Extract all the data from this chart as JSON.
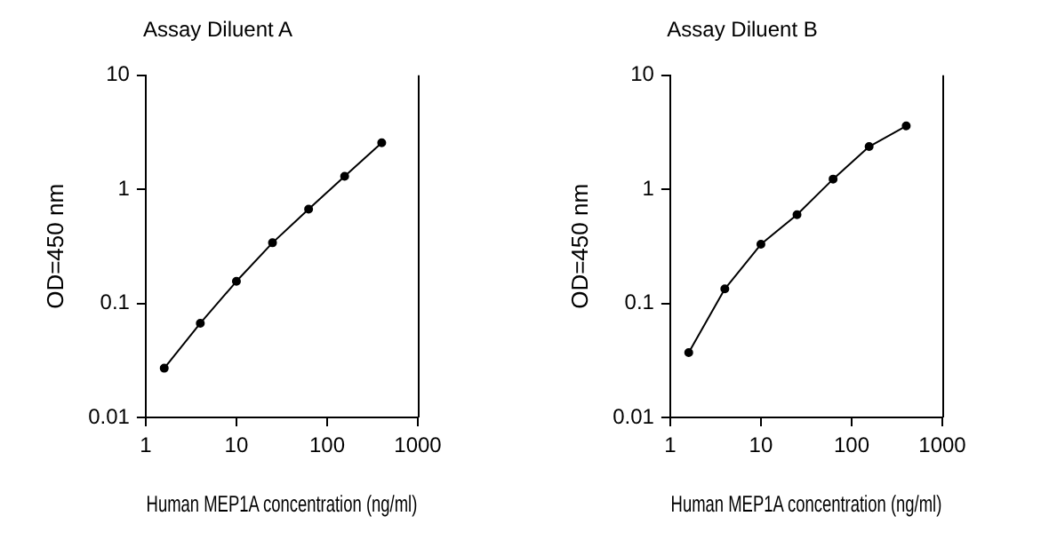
{
  "chart_data": [
    {
      "type": "line",
      "title": "Assay Diluent A",
      "xlabel": "Human MEP1A concentration (ng/ml)",
      "ylabel": "OD=450 nm",
      "log": "xy",
      "grid": false,
      "marker": "circle",
      "line_style": "solid",
      "color": "#000000",
      "x": [
        1.6,
        4,
        10,
        25,
        62.5,
        156,
        400
      ],
      "values": [
        0.027,
        0.067,
        0.156,
        0.34,
        0.67,
        1.3,
        2.56
      ],
      "xlim": [
        1,
        1000
      ],
      "ylim": [
        0.01,
        10
      ],
      "xticks": [
        1,
        10,
        100,
        1000
      ],
      "yticks": [
        0.01,
        0.1,
        1,
        10
      ]
    },
    {
      "type": "line",
      "title": "Assay Diluent B",
      "xlabel": "Human MEP1A concentration (ng/ml)",
      "ylabel": "OD=450 nm",
      "log": "xy",
      "grid": false,
      "marker": "circle",
      "line_style": "solid",
      "color": "#000000",
      "x": [
        1.6,
        4,
        10,
        25,
        62.5,
        156,
        400
      ],
      "values": [
        0.037,
        0.134,
        0.33,
        0.6,
        1.23,
        2.37,
        3.6
      ],
      "xlim": [
        1,
        1000
      ],
      "ylim": [
        0.01,
        10
      ],
      "xticks": [
        1,
        10,
        100,
        1000
      ],
      "yticks": [
        0.01,
        0.1,
        1,
        10
      ]
    }
  ]
}
